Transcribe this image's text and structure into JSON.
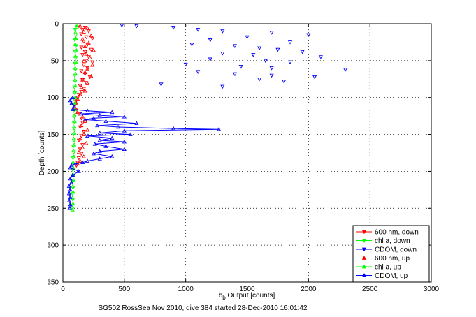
{
  "chart_data": {
    "type": "scatter",
    "xlabel": "b_b Output [counts]",
    "ylabel": "Depth [counts]",
    "caption": "SG502 RossSea Nov 2010, dive 384 started 28-Dec-2010 16:01:42",
    "xlim": [
      0,
      3000
    ],
    "ylim": [
      0,
      350
    ],
    "y_reversed": true,
    "grid": true,
    "x_ticks": [
      "0",
      "500",
      "1000",
      "1500",
      "2000",
      "2500",
      "3000"
    ],
    "y_ticks": [
      "0",
      "50",
      "100",
      "150",
      "200",
      "250",
      "300",
      "350"
    ],
    "legend_position": "bottom-right",
    "series": [
      {
        "name": "600 nm, down",
        "color": "#ff0000",
        "marker": "triangle-down",
        "connected": false,
        "points": [
          [
            130,
            2
          ],
          [
            180,
            5
          ],
          [
            160,
            8
          ],
          [
            210,
            10
          ],
          [
            150,
            14
          ],
          [
            190,
            18
          ],
          [
            240,
            20
          ],
          [
            170,
            24
          ],
          [
            200,
            28
          ],
          [
            150,
            32
          ],
          [
            230,
            35
          ],
          [
            180,
            38
          ],
          [
            160,
            42
          ],
          [
            210,
            45
          ],
          [
            190,
            50
          ],
          [
            240,
            52
          ],
          [
            170,
            56
          ],
          [
            200,
            60
          ],
          [
            150,
            64
          ],
          [
            180,
            68
          ],
          [
            220,
            72
          ],
          [
            160,
            76
          ],
          [
            190,
            80
          ],
          [
            140,
            84
          ],
          [
            170,
            88
          ],
          [
            150,
            92
          ],
          [
            130,
            96
          ],
          [
            120,
            100
          ],
          [
            110,
            104
          ],
          [
            100,
            110
          ],
          [
            110,
            116
          ],
          [
            130,
            122
          ],
          [
            150,
            128
          ],
          [
            160,
            134
          ],
          [
            140,
            140
          ],
          [
            170,
            146
          ],
          [
            150,
            152
          ],
          [
            130,
            158
          ],
          [
            160,
            164
          ],
          [
            140,
            170
          ],
          [
            150,
            176
          ],
          [
            130,
            182
          ],
          [
            120,
            188
          ],
          [
            110,
            192
          ]
        ]
      },
      {
        "name": "chl a, down",
        "color": "#00ff00",
        "marker": "triangle-down",
        "connected": false,
        "points": [
          [
            110,
            2
          ],
          [
            100,
            8
          ],
          [
            105,
            15
          ],
          [
            98,
            22
          ],
          [
            108,
            30
          ],
          [
            100,
            38
          ],
          [
            104,
            46
          ],
          [
            98,
            54
          ],
          [
            102,
            62
          ],
          [
            96,
            70
          ],
          [
            100,
            78
          ],
          [
            94,
            86
          ],
          [
            98,
            94
          ],
          [
            92,
            102
          ],
          [
            96,
            110
          ],
          [
            90,
            118
          ],
          [
            94,
            126
          ],
          [
            88,
            134
          ],
          [
            92,
            142
          ],
          [
            86,
            150
          ],
          [
            90,
            158
          ],
          [
            84,
            166
          ],
          [
            88,
            174
          ],
          [
            82,
            182
          ],
          [
            86,
            190
          ],
          [
            80,
            198
          ],
          [
            84,
            206
          ],
          [
            78,
            214
          ],
          [
            82,
            222
          ],
          [
            76,
            230
          ],
          [
            80,
            238
          ],
          [
            75,
            246
          ],
          [
            78,
            250
          ]
        ]
      },
      {
        "name": "CDOM, down",
        "color": "#0000ff",
        "marker": "triangle-down",
        "connected": false,
        "points": [
          [
            480,
            2
          ],
          [
            600,
            3
          ],
          [
            900,
            5
          ],
          [
            1100,
            8
          ],
          [
            1300,
            10
          ],
          [
            1700,
            12
          ],
          [
            2000,
            15
          ],
          [
            1500,
            18
          ],
          [
            1200,
            22
          ],
          [
            1850,
            25
          ],
          [
            1050,
            28
          ],
          [
            1400,
            30
          ],
          [
            1600,
            33
          ],
          [
            1750,
            35
          ],
          [
            1950,
            38
          ],
          [
            1300,
            40
          ],
          [
            1550,
            42
          ],
          [
            2100,
            45
          ],
          [
            1200,
            48
          ],
          [
            1650,
            50
          ],
          [
            1850,
            52
          ],
          [
            1000,
            55
          ],
          [
            1450,
            58
          ],
          [
            1700,
            60
          ],
          [
            2300,
            62
          ],
          [
            1100,
            65
          ],
          [
            1400,
            68
          ],
          [
            1700,
            70
          ],
          [
            2050,
            72
          ],
          [
            1600,
            75
          ],
          [
            1800,
            78
          ],
          [
            800,
            82
          ],
          [
            1300,
            85
          ]
        ]
      },
      {
        "name": "600 nm, up",
        "color": "#ff0000",
        "marker": "triangle-up",
        "connected": false,
        "points": [
          [
            140,
            3
          ],
          [
            200,
            6
          ],
          [
            170,
            11
          ],
          [
            230,
            16
          ],
          [
            160,
            21
          ],
          [
            210,
            26
          ],
          [
            180,
            31
          ],
          [
            250,
            36
          ],
          [
            190,
            41
          ],
          [
            220,
            46
          ],
          [
            170,
            51
          ],
          [
            240,
            56
          ],
          [
            200,
            61
          ],
          [
            180,
            66
          ],
          [
            230,
            71
          ],
          [
            160,
            76
          ],
          [
            200,
            81
          ],
          [
            150,
            86
          ],
          [
            180,
            91
          ],
          [
            140,
            96
          ],
          [
            120,
            102
          ],
          [
            110,
            108
          ],
          [
            100,
            114
          ],
          [
            120,
            120
          ],
          [
            160,
            126
          ],
          [
            180,
            132
          ],
          [
            150,
            138
          ],
          [
            200,
            144
          ],
          [
            170,
            150
          ],
          [
            140,
            156
          ],
          [
            190,
            162
          ],
          [
            160,
            168
          ],
          [
            130,
            174
          ],
          [
            170,
            180
          ],
          [
            140,
            186
          ],
          [
            120,
            190
          ]
        ]
      },
      {
        "name": "chl a, up",
        "color": "#00ff00",
        "marker": "triangle-up",
        "connected": false,
        "points": [
          [
            112,
            4
          ],
          [
            102,
            12
          ],
          [
            106,
            20
          ],
          [
            100,
            28
          ],
          [
            110,
            36
          ],
          [
            102,
            44
          ],
          [
            106,
            52
          ],
          [
            100,
            60
          ],
          [
            104,
            68
          ],
          [
            98,
            76
          ],
          [
            102,
            84
          ],
          [
            96,
            92
          ],
          [
            100,
            100
          ],
          [
            94,
            108
          ],
          [
            98,
            116
          ],
          [
            92,
            124
          ],
          [
            96,
            132
          ],
          [
            90,
            140
          ],
          [
            94,
            148
          ],
          [
            88,
            156
          ],
          [
            92,
            164
          ],
          [
            86,
            172
          ],
          [
            90,
            180
          ],
          [
            84,
            188
          ],
          [
            88,
            196
          ],
          [
            82,
            204
          ],
          [
            86,
            212
          ],
          [
            80,
            220
          ],
          [
            84,
            228
          ],
          [
            78,
            236
          ],
          [
            82,
            244
          ],
          [
            78,
            252
          ]
        ]
      },
      {
        "name": "CDOM, up",
        "color": "#0000ff",
        "marker": "triangle-up",
        "connected": true,
        "points": [
          [
            80,
            100
          ],
          [
            60,
            104
          ],
          [
            70,
            108
          ],
          [
            90,
            112
          ],
          [
            80,
            116
          ],
          [
            200,
            118
          ],
          [
            400,
            120
          ],
          [
            150,
            122
          ],
          [
            300,
            124
          ],
          [
            500,
            126
          ],
          [
            250,
            128
          ],
          [
            180,
            130
          ],
          [
            350,
            132
          ],
          [
            600,
            135
          ],
          [
            280,
            138
          ],
          [
            450,
            140
          ],
          [
            900,
            142
          ],
          [
            1270,
            143
          ],
          [
            500,
            145
          ],
          [
            300,
            148
          ],
          [
            550,
            150
          ],
          [
            200,
            152
          ],
          [
            400,
            155
          ],
          [
            300,
            158
          ],
          [
            500,
            160
          ],
          [
            260,
            163
          ],
          [
            350,
            166
          ],
          [
            500,
            170
          ],
          [
            300,
            173
          ],
          [
            250,
            176
          ],
          [
            400,
            180
          ],
          [
            300,
            183
          ],
          [
            200,
            186
          ],
          [
            160,
            188
          ],
          [
            100,
            190
          ],
          [
            70,
            192
          ],
          [
            60,
            195
          ],
          [
            130,
            200
          ],
          [
            80,
            205
          ],
          [
            60,
            210
          ],
          [
            70,
            215
          ],
          [
            50,
            220
          ],
          [
            60,
            225
          ],
          [
            50,
            230
          ],
          [
            60,
            235
          ],
          [
            50,
            240
          ],
          [
            60,
            245
          ],
          [
            55,
            250
          ]
        ]
      }
    ]
  }
}
